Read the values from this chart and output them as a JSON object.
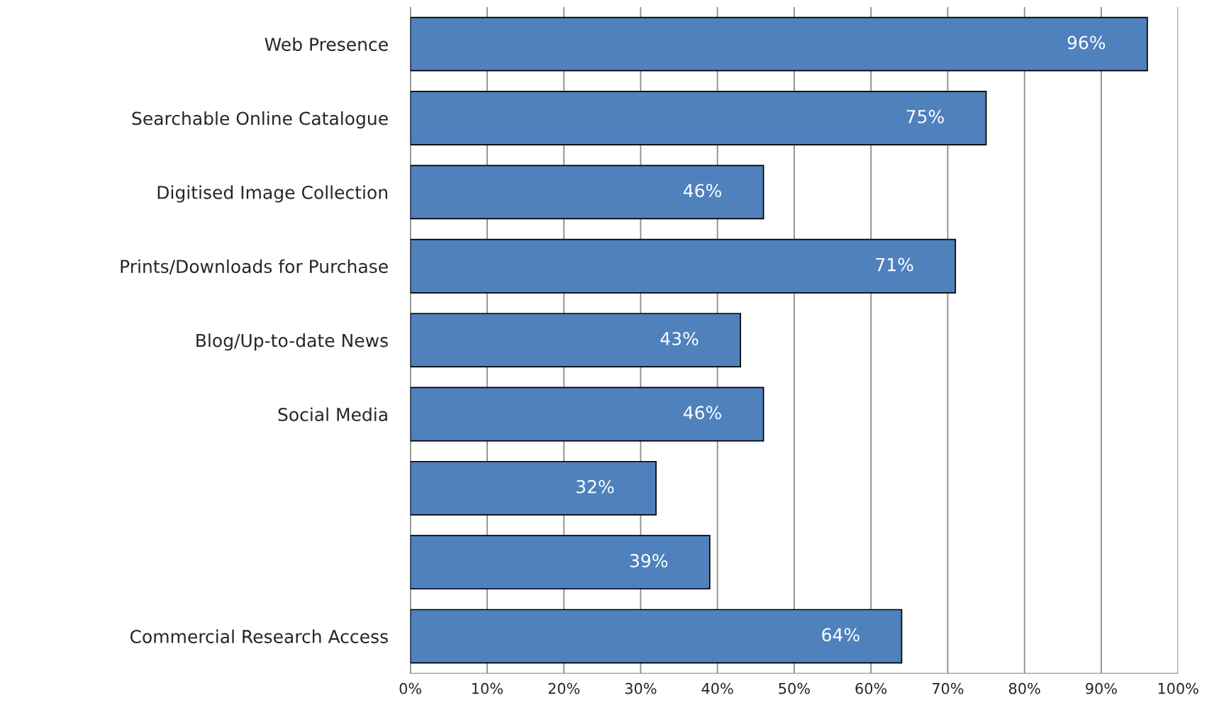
{
  "chart_data": {
    "type": "bar",
    "orientation": "horizontal",
    "categories": [
      "Web Presence",
      "Searchable Online Catalogue",
      "Digitised Image Collection",
      "Prints/Downloads for Purchase",
      "Blog/Up-to-date News",
      "Social Media",
      null,
      null,
      "Commercial Research Access"
    ],
    "values": [
      96,
      75,
      46,
      71,
      43,
      46,
      32,
      39,
      64
    ],
    "value_labels": [
      "96%",
      "75%",
      "46%",
      "71%",
      "43%",
      "46%",
      "32%",
      "39%",
      "64%"
    ],
    "color": "#4f81bd",
    "xlim": [
      0,
      100
    ],
    "xticks": [
      {
        "value": 0,
        "label": "0%"
      },
      {
        "value": 10,
        "label": "10%"
      },
      {
        "value": 20,
        "label": "20%"
      },
      {
        "value": 30,
        "label": "30%"
      },
      {
        "value": 40,
        "label": "40%"
      },
      {
        "value": 50,
        "label": "50%"
      },
      {
        "value": 60,
        "label": "60%"
      },
      {
        "value": 70,
        "label": "70%"
      },
      {
        "value": 80,
        "label": "80%"
      },
      {
        "value": 90,
        "label": "90%"
      },
      {
        "value": 100,
        "label": "100%"
      }
    ],
    "grid": "x",
    "legend": false
  }
}
